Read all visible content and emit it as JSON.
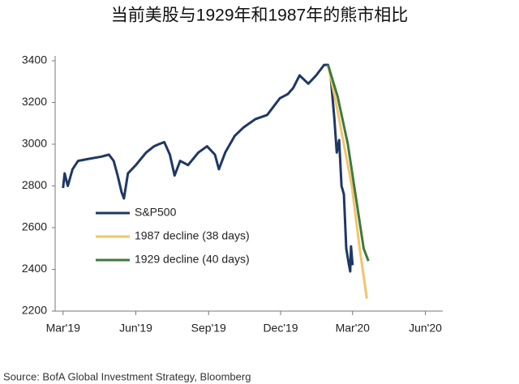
{
  "chart_data": {
    "type": "line",
    "title": "当前美股与1929年和1987年的熊市相比",
    "source": "Source: BofA Global Investment Strategy, Bloomberg",
    "xlim": [
      -10,
      480
    ],
    "xticks": [
      {
        "value": 0,
        "label": "Mar'19"
      },
      {
        "value": 92,
        "label": "Jun'19"
      },
      {
        "value": 184,
        "label": "Sep'19"
      },
      {
        "value": 275,
        "label": "Dec'19"
      },
      {
        "value": 366,
        "label": "Mar'20"
      },
      {
        "value": 458,
        "label": "Jun'20"
      }
    ],
    "ylim": [
      2200,
      3400
    ],
    "yticks": [
      2200,
      2400,
      2600,
      2800,
      3000,
      3200,
      3400
    ],
    "series": [
      {
        "name": "S&P500",
        "color": "#1f3864",
        "x": [
          0,
          2,
          6,
          12,
          19,
          33,
          48,
          58,
          64,
          69,
          74,
          77,
          82,
          92,
          105,
          115,
          121,
          128,
          135,
          141,
          148,
          158,
          171,
          182,
          192,
          197,
          205,
          217,
          228,
          243,
          258,
          274,
          284,
          291,
          299,
          310,
          320,
          330,
          335,
          338,
          343,
          346,
          349,
          352,
          355,
          358,
          361,
          363,
          364,
          366
        ],
        "values": [
          2790,
          2860,
          2800,
          2880,
          2920,
          2930,
          2940,
          2950,
          2920,
          2850,
          2770,
          2740,
          2860,
          2900,
          2960,
          2990,
          3000,
          3010,
          2950,
          2850,
          2920,
          2900,
          2960,
          2990,
          2950,
          2880,
          2960,
          3040,
          3080,
          3120,
          3140,
          3220,
          3240,
          3270,
          3330,
          3290,
          3330,
          3380,
          3380,
          3340,
          3120,
          2960,
          3020,
          2800,
          2760,
          2500,
          2430,
          2390,
          2510,
          2420
        ]
      },
      {
        "name": "1987 decline (38 days)",
        "color": "#f2c46a",
        "x": [
          335,
          345,
          355,
          365,
          375,
          384
        ],
        "values": [
          3380,
          3200,
          3000,
          2800,
          2500,
          2260
        ]
      },
      {
        "name": "1929 decline (40 days)",
        "color": "#3d7a3d",
        "x": [
          335,
          347,
          360,
          372,
          380,
          386
        ],
        "values": [
          3380,
          3230,
          3000,
          2700,
          2500,
          2440
        ]
      }
    ]
  }
}
